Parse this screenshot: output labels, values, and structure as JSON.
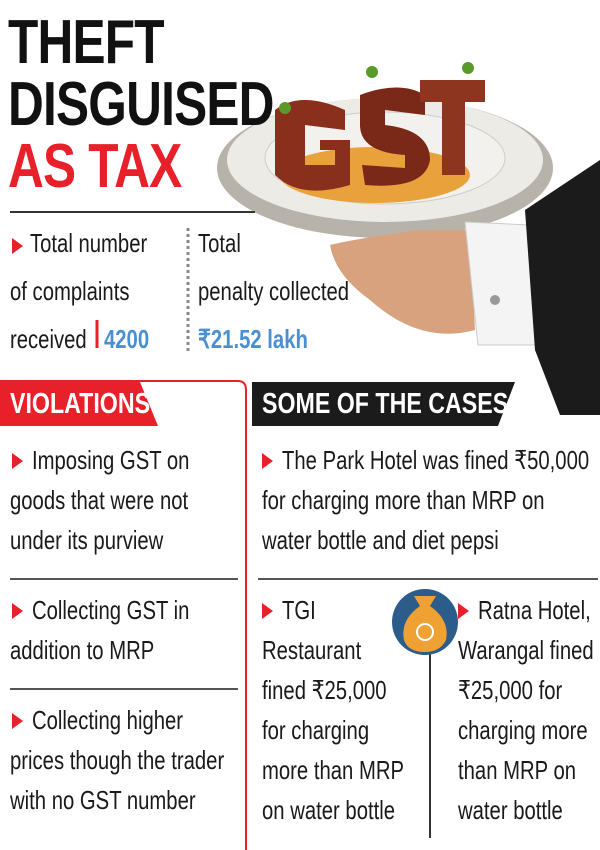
{
  "title": {
    "lines": [
      "THEFT",
      "DISGUISED",
      "AS TAX"
    ]
  },
  "stats": {
    "complaints": {
      "lines": [
        "Total number",
        "of complaints",
        "received"
      ],
      "value": "4200"
    },
    "penalty": {
      "lines": [
        "Total",
        "penalty collected"
      ],
      "value": "₹21.52 lakh"
    }
  },
  "violations": {
    "header": "VIOLATIONS",
    "items": [
      {
        "lines": [
          "Imposing GST on",
          "goods that were not",
          "under its purview"
        ]
      },
      {
        "lines": [
          "Collecting GST in",
          "addition to MRP"
        ]
      },
      {
        "lines": [
          "Collecting higher",
          "prices though the trader",
          "with no GST number"
        ]
      }
    ]
  },
  "cases": {
    "header": "SOME OF THE CASES",
    "items": [
      {
        "lines": [
          "The Park Hotel was fined ₹50,000",
          "for charging more than MRP on",
          "water bottle and diet pepsi"
        ]
      },
      {
        "lines": [
          "TGI",
          "Restaurant",
          "fined ₹25,000",
          "for charging",
          "more than MRP",
          "on water bottle"
        ]
      },
      {
        "lines": [
          "Ratna Hotel,",
          "Warangal fined",
          "₹25,000 for",
          "charging more",
          "than MRP on",
          "water bottle"
        ]
      }
    ]
  }
}
